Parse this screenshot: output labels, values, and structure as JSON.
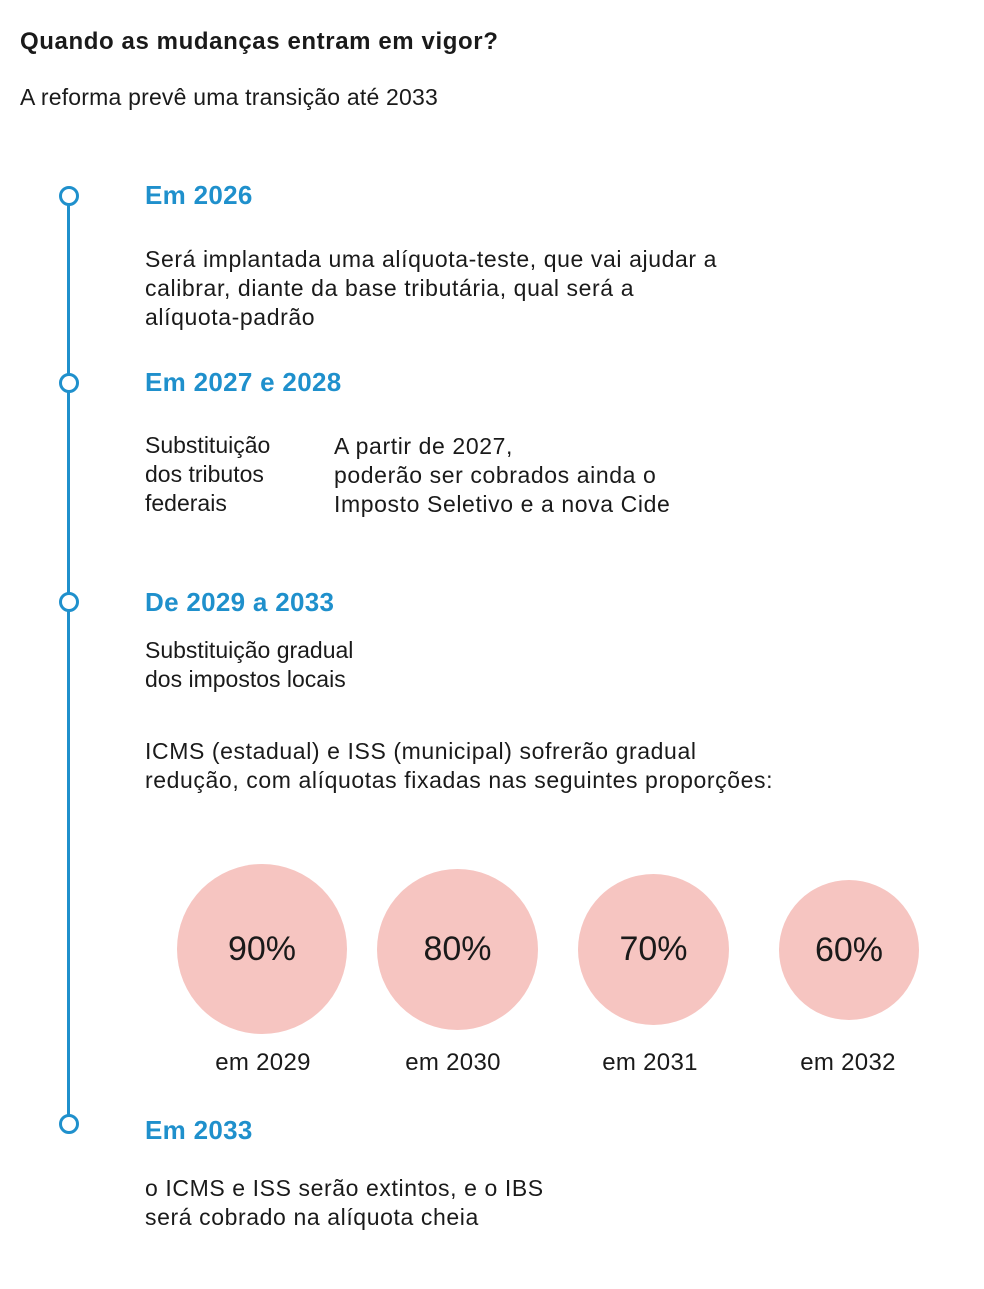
{
  "header": {
    "title": "Quando as mudanças entram em vigor?",
    "subtitle": "A reforma prevê uma transição até 2033"
  },
  "stages": [
    {
      "title": "Em 2026",
      "text": "Será implantada uma alíquota-teste, que vai ajudar a\ncalibrar, diante da base tributária, qual será a\nalíquota-padrão"
    },
    {
      "title": "Em 2027 e 2028",
      "label": "Substituição\ndos tributos\nfederais",
      "text": "A partir de 2027,\npoderão ser cobrados ainda o\nImposto Seletivo e a nova Cide"
    },
    {
      "title": "De 2029 a 2033",
      "label": "Substituição gradual\ndos impostos locais",
      "text": "ICMS (estadual) e ISS (municipal) sofrerão gradual\nredução, com alíquotas fixadas nas seguintes proporções:"
    },
    {
      "title": "Em 2033",
      "text": "o ICMS e ISS serão extintos, e o IBS\nserá cobrado na alíquota cheia"
    }
  ],
  "proportions": [
    {
      "value": "90%",
      "year": "em 2029",
      "fraction": 0.9
    },
    {
      "value": "80%",
      "year": "em 2030",
      "fraction": 0.8
    },
    {
      "value": "70%",
      "year": "em 2031",
      "fraction": 0.7
    },
    {
      "value": "60%",
      "year": "em 2032",
      "fraction": 0.6
    }
  ],
  "colors": {
    "accent": "#1f90cc",
    "circle_fill": "#f6c5c1",
    "text": "#1a1a1a"
  }
}
